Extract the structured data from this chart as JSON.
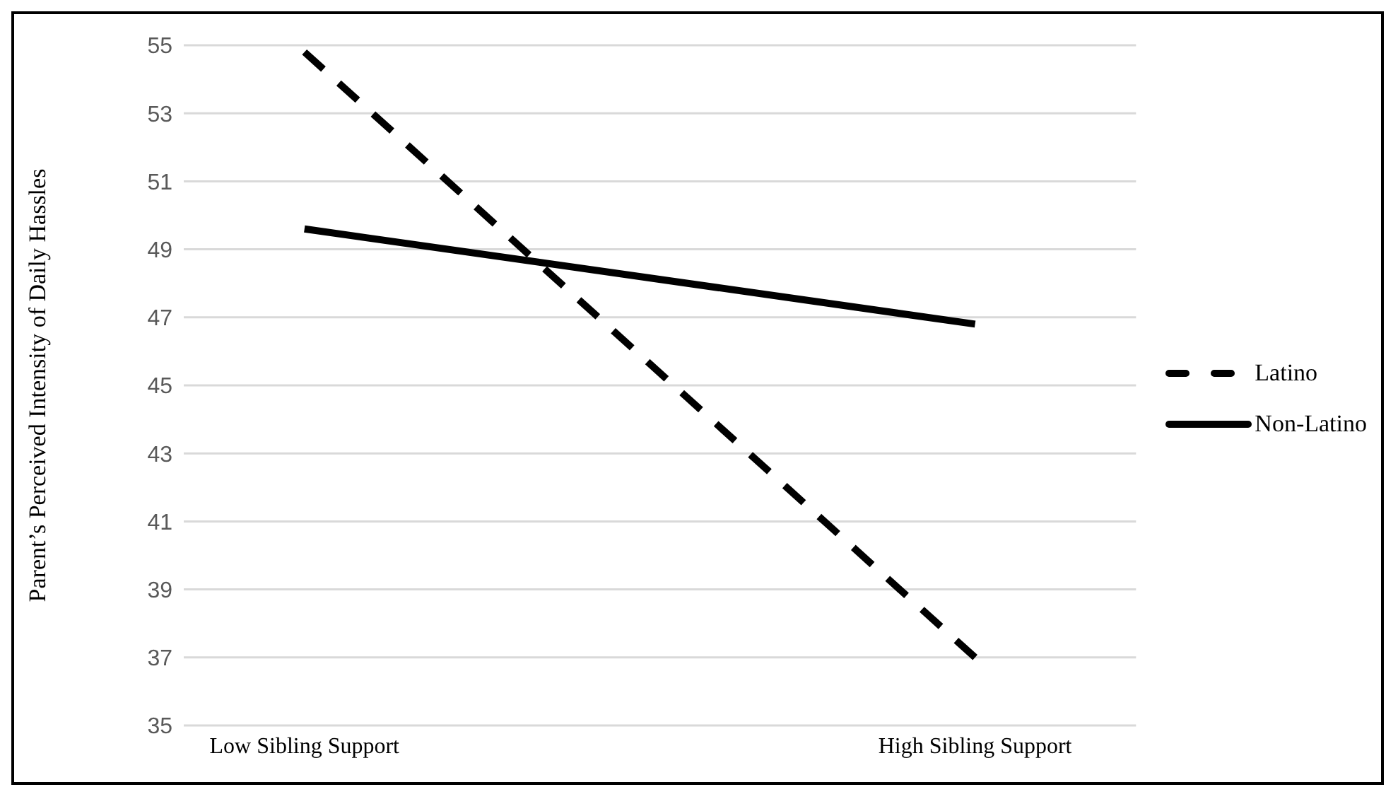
{
  "chart_data": {
    "type": "line",
    "ylabel": "Parent’s Perceived Intensity of Daily Hassles",
    "categories": [
      "Low Sibling Support",
      "High Sibling Support"
    ],
    "series": [
      {
        "name": "Latino",
        "color": "#000000",
        "values": [
          54.8,
          37.0
        ],
        "line_style": "dashed"
      },
      {
        "name": "Non-Latino",
        "color": "#000000",
        "values": [
          49.6,
          46.8
        ],
        "line_style": "solid"
      }
    ],
    "ylim": [
      35,
      55
    ],
    "yticks": [
      35,
      37,
      39,
      41,
      43,
      45,
      47,
      49,
      51,
      53,
      55
    ],
    "grid": "y",
    "legend": "right",
    "marker": "none"
  }
}
